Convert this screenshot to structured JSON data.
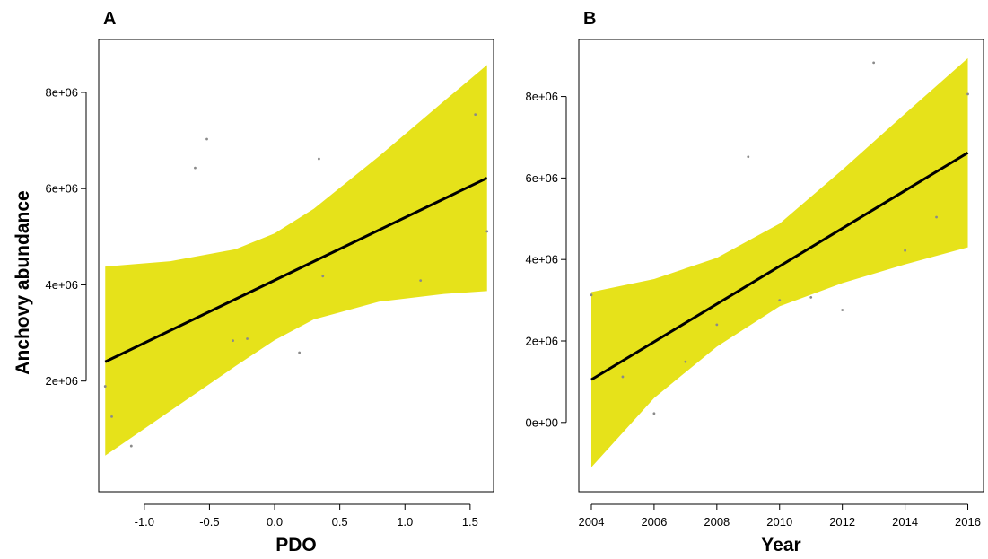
{
  "figure": {
    "ylabel": "Anchovy abundance",
    "colors": {
      "band": "#e6e21a",
      "fit": "#000000",
      "point": "#8a8a8a",
      "frame": "#000000"
    }
  },
  "chart_data": [
    {
      "type": "scatter",
      "panel_label": "A",
      "xlabel": "PDO",
      "ylabel": "Anchovy abundance",
      "xlim": [
        -1.35,
        1.68
      ],
      "ylim": [
        -300000,
        9100000
      ],
      "x_ticks": [
        -1.0,
        -0.5,
        0.0,
        0.5,
        1.0,
        1.5
      ],
      "x_tick_labels": [
        "-1.0",
        "-0.5",
        "0.0",
        "0.5",
        "1.0",
        "1.5"
      ],
      "y_ticks": [
        2000000,
        4000000,
        6000000,
        8000000
      ],
      "y_tick_labels": [
        "2e+06",
        "4e+06",
        "6e+06",
        "8e+06"
      ],
      "points": [
        {
          "x": -1.3,
          "y": 1890000
        },
        {
          "x": -1.25,
          "y": 1260000
        },
        {
          "x": -1.1,
          "y": 650000
        },
        {
          "x": -0.61,
          "y": 6430000
        },
        {
          "x": -0.52,
          "y": 7030000
        },
        {
          "x": -0.32,
          "y": 2840000
        },
        {
          "x": -0.21,
          "y": 2880000
        },
        {
          "x": 0.19,
          "y": 2590000
        },
        {
          "x": 0.34,
          "y": 6620000
        },
        {
          "x": 0.37,
          "y": 4180000
        },
        {
          "x": 1.12,
          "y": 4090000
        },
        {
          "x": 1.54,
          "y": 7540000
        },
        {
          "x": 1.63,
          "y": 5110000
        }
      ],
      "fit": {
        "x": [
          -1.3,
          1.63
        ],
        "y": [
          2400000,
          6220000
        ]
      },
      "band": {
        "x": [
          -1.3,
          -0.8,
          -0.3,
          0.0,
          0.3,
          0.8,
          1.3,
          1.63
        ],
        "lower": [
          450000,
          1380000,
          2310000,
          2850000,
          3280000,
          3650000,
          3810000,
          3870000
        ],
        "upper": [
          4380000,
          4490000,
          4740000,
          5070000,
          5580000,
          6670000,
          7820000,
          8570000
        ]
      }
    },
    {
      "type": "scatter",
      "panel_label": "B",
      "xlabel": "Year",
      "ylabel": "",
      "xlim": [
        2003.6,
        2016.5
      ],
      "ylim": [
        -1700000,
        9400000
      ],
      "x_ticks": [
        2004,
        2006,
        2008,
        2010,
        2012,
        2014,
        2016
      ],
      "x_tick_labels": [
        "2004",
        "2006",
        "2008",
        "2010",
        "2012",
        "2014",
        "2016"
      ],
      "y_ticks": [
        0,
        2000000,
        4000000,
        6000000,
        8000000
      ],
      "y_tick_labels": [
        "0e+00",
        "2e+06",
        "4e+06",
        "6e+06",
        "8e+06"
      ],
      "points": [
        {
          "x": 2004,
          "y": 3130000
        },
        {
          "x": 2005,
          "y": 1120000
        },
        {
          "x": 2006,
          "y": 220000
        },
        {
          "x": 2007,
          "y": 1490000
        },
        {
          "x": 2008,
          "y": 2400000
        },
        {
          "x": 2009,
          "y": 6520000
        },
        {
          "x": 2010,
          "y": 3000000
        },
        {
          "x": 2011,
          "y": 3070000
        },
        {
          "x": 2012,
          "y": 2760000
        },
        {
          "x": 2013,
          "y": 8830000
        },
        {
          "x": 2014,
          "y": 4220000
        },
        {
          "x": 2015,
          "y": 5040000
        },
        {
          "x": 2016,
          "y": 8060000
        }
      ],
      "fit": {
        "x": [
          2004,
          2016
        ],
        "y": [
          1050000,
          6620000
        ]
      },
      "band": {
        "x": [
          2004,
          2006,
          2008,
          2010,
          2012,
          2014,
          2016
        ],
        "lower": [
          -1100000,
          600000,
          1860000,
          2850000,
          3420000,
          3880000,
          4300000
        ],
        "upper": [
          3200000,
          3520000,
          4040000,
          4880000,
          6200000,
          7580000,
          8940000
        ]
      }
    }
  ]
}
